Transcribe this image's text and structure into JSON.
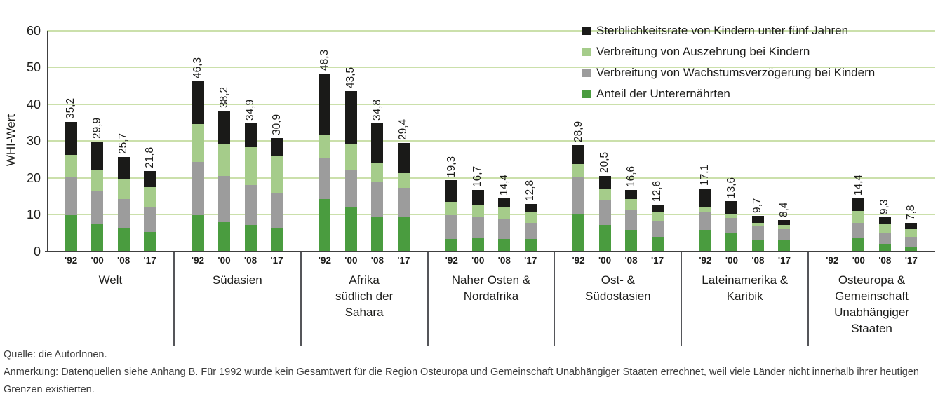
{
  "chart_data": {
    "type": "bar",
    "stacked": true,
    "ylabel": "WHI-Wert",
    "ylim": [
      0,
      60
    ],
    "y_ticks": [
      0,
      10,
      20,
      30,
      40,
      50,
      60
    ],
    "grid": true,
    "legend_position": "top-right",
    "series_order_bottom_to_top": [
      "undernourishment",
      "stunting",
      "wasting",
      "mortality"
    ],
    "colors": {
      "mortality": "#1a1a18",
      "wasting": "#a5cc8a",
      "stunting": "#9c9c9c",
      "undernourishment": "#4a9c3f",
      "gridline": "#cbe0ab",
      "axis": "#404040",
      "separator": "#55565a",
      "text": "#1d1d1b"
    },
    "legend": [
      {
        "key": "mortality",
        "label": "Sterblichkeitsrate von Kindern unter fünf Jahren"
      },
      {
        "key": "wasting",
        "label": "Verbreitung von Auszehrung bei Kindern"
      },
      {
        "key": "stunting",
        "label": "Verbreitung von Wachstumsverzögerung bei Kindern"
      },
      {
        "key": "undernourishment",
        "label": "Anteil der Unterernährten"
      }
    ],
    "years": [
      "'92",
      "'00",
      "'08",
      "'17"
    ],
    "groups": [
      {
        "name": "Welt",
        "name_lines": [
          "Welt"
        ],
        "bars": [
          {
            "year": "'92",
            "total": 35.2,
            "label": "35,2",
            "segments": [
              9.9,
              10.3,
              6.0,
              9.0
            ]
          },
          {
            "year": "'00",
            "total": 29.9,
            "label": "29,9",
            "segments": [
              7.4,
              9.0,
              5.6,
              7.9
            ]
          },
          {
            "year": "'08",
            "total": 25.7,
            "label": "25,7",
            "segments": [
              6.2,
              8.0,
              5.6,
              5.9
            ]
          },
          {
            "year": "'17",
            "total": 21.8,
            "label": "21,8",
            "segments": [
              5.3,
              6.6,
              5.5,
              4.4
            ]
          }
        ]
      },
      {
        "name": "Südasien",
        "name_lines": [
          "Südasien"
        ],
        "bars": [
          {
            "year": "'92",
            "total": 46.3,
            "label": "46,3",
            "segments": [
              9.9,
              14.4,
              10.4,
              11.6
            ]
          },
          {
            "year": "'00",
            "total": 38.2,
            "label": "38,2",
            "segments": [
              7.9,
              12.6,
              8.7,
              9.0
            ]
          },
          {
            "year": "'08",
            "total": 34.9,
            "label": "34,9",
            "segments": [
              7.1,
              10.9,
              10.3,
              6.6
            ]
          },
          {
            "year": "'17",
            "total": 30.9,
            "label": "30,9",
            "segments": [
              6.3,
              9.4,
              10.2,
              5.0
            ]
          }
        ]
      },
      {
        "name": "Afrika südlich der Sahara",
        "name_lines": [
          "Afrika",
          "südlich der",
          "Sahara"
        ],
        "bars": [
          {
            "year": "'92",
            "total": 48.3,
            "label": "48,3",
            "segments": [
              14.3,
              11.0,
              6.3,
              16.7
            ]
          },
          {
            "year": "'00",
            "total": 43.5,
            "label": "43,5",
            "segments": [
              11.9,
              10.3,
              6.9,
              14.4
            ]
          },
          {
            "year": "'08",
            "total": 34.8,
            "label": "34,8",
            "segments": [
              9.3,
              9.5,
              5.3,
              10.7
            ]
          },
          {
            "year": "'17",
            "total": 29.4,
            "label": "29,4",
            "segments": [
              9.3,
              7.9,
              4.0,
              8.2
            ]
          }
        ]
      },
      {
        "name": "Naher Osten & Nordafrika",
        "name_lines": [
          "Naher Osten &",
          "Nordafrika"
        ],
        "bars": [
          {
            "year": "'92",
            "total": 19.3,
            "label": "19,3",
            "segments": [
              3.3,
              6.5,
              3.6,
              5.9
            ]
          },
          {
            "year": "'00",
            "total": 16.7,
            "label": "16,7",
            "segments": [
              3.5,
              6.0,
              3.0,
              4.2
            ]
          },
          {
            "year": "'08",
            "total": 14.4,
            "label": "14,4",
            "segments": [
              3.3,
              5.4,
              3.2,
              2.5
            ]
          },
          {
            "year": "'17",
            "total": 12.8,
            "label": "12,8",
            "segments": [
              3.3,
              4.4,
              2.9,
              2.2
            ]
          }
        ]
      },
      {
        "name": "Ost- & Südostasien",
        "name_lines": [
          "Ost- &",
          "Südostasien"
        ],
        "bars": [
          {
            "year": "'92",
            "total": 28.9,
            "label": "28,9",
            "segments": [
              10.1,
              10.3,
              3.3,
              5.2
            ]
          },
          {
            "year": "'00",
            "total": 20.5,
            "label": "20,5",
            "segments": [
              7.2,
              6.7,
              2.9,
              3.7
            ]
          },
          {
            "year": "'08",
            "total": 16.6,
            "label": "16,6",
            "segments": [
              5.8,
              5.4,
              3.0,
              2.4
            ]
          },
          {
            "year": "'17",
            "total": 12.6,
            "label": "12,6",
            "segments": [
              4.0,
              4.3,
              2.4,
              1.9
            ]
          }
        ]
      },
      {
        "name": "Lateinamerika & Karibik",
        "name_lines": [
          "Lateinamerika &",
          "Karibik"
        ],
        "bars": [
          {
            "year": "'92",
            "total": 17.1,
            "label": "17,1",
            "segments": [
              5.9,
              4.6,
              1.6,
              5.0
            ]
          },
          {
            "year": "'00",
            "total": 13.6,
            "label": "13,6",
            "segments": [
              5.1,
              4.0,
              1.1,
              3.4
            ]
          },
          {
            "year": "'08",
            "total": 9.7,
            "label": "9,7",
            "segments": [
              3.0,
              3.8,
              1.0,
              1.9
            ]
          },
          {
            "year": "'17",
            "total": 8.4,
            "label": "8,4",
            "segments": [
              3.0,
              3.1,
              1.0,
              1.3
            ]
          }
        ]
      },
      {
        "name": "Osteuropa & Gemeinschaft Unabhängiger Staaten",
        "name_lines": [
          "Osteuropa &",
          "Gemeinschaft",
          "Unabhängiger",
          "Staaten"
        ],
        "bars": [
          {
            "year": "'92",
            "total": null,
            "label": "",
            "segments": null
          },
          {
            "year": "'00",
            "total": 14.4,
            "label": "14,4",
            "segments": [
              3.6,
              4.1,
              3.2,
              3.5
            ]
          },
          {
            "year": "'08",
            "total": 9.3,
            "label": "9,3",
            "segments": [
              2.0,
              3.0,
              2.5,
              1.8
            ]
          },
          {
            "year": "'17",
            "total": 7.8,
            "label": "7,8",
            "segments": [
              1.3,
              2.7,
              2.1,
              1.7
            ]
          }
        ]
      }
    ]
  },
  "footer": {
    "source": "Quelle: die AutorInnen.",
    "note": "Anmerkung: Datenquellen siehe Anhang B. Für 1992 wurde kein Gesamtwert für die Region Osteuropa und Gemeinschaft Unabhängiger Staaten errechnet, weil viele Länder nicht innerhalb ihrer heutigen Grenzen existierten."
  }
}
